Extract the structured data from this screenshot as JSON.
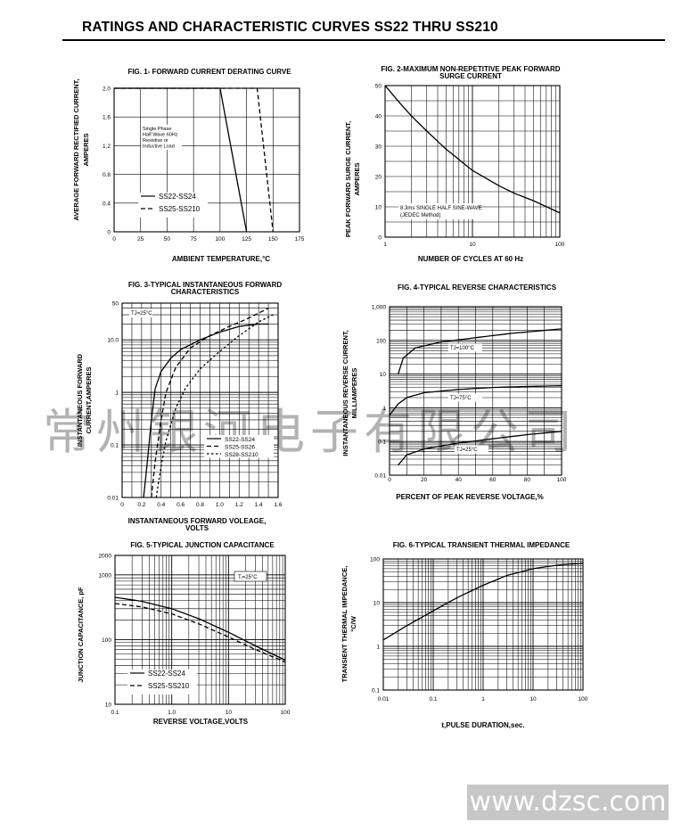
{
  "page": {
    "title": "RATINGS AND CHARACTERISTIC CURVES SS22 THRU SS210",
    "watermark": "常州银河电子有限公司",
    "website": "www.dzsc.com"
  },
  "chart_data": [
    {
      "id": "fig1",
      "type": "line",
      "title": "FIG. 1- FORWARD CURRENT DERATING CURVE",
      "xlabel": "AMBIENT TEMPERATURE,°C",
      "ylabel": "AVERAGE FORWARD RECTIFIED CURRENT, AMPERES",
      "xscale": "linear",
      "yscale": "linear",
      "xlim": [
        0,
        175
      ],
      "ylim": [
        0,
        2.0
      ],
      "xticks": [
        0,
        25,
        50,
        75,
        100,
        125,
        150,
        175
      ],
      "yticks": [
        0,
        0.4,
        0.8,
        1.2,
        1.6,
        2.0
      ],
      "xtick_labels": [
        "0",
        "25",
        "50",
        "75",
        "100",
        "125",
        "150",
        "175"
      ],
      "ytick_labels": [
        "0",
        "0.4",
        "0.8",
        "1.2",
        "1.6",
        "2.0"
      ],
      "annotation": [
        "Single Phase",
        "Half Wave 60Hz",
        "Resistive or",
        "Inductive Load"
      ],
      "legend": [
        {
          "label": "SS22-SS24",
          "style": "solid"
        },
        {
          "label": "SS25-SS210",
          "style": "dashed"
        }
      ],
      "series": [
        {
          "name": "SS22-SS24",
          "style": "solid",
          "points": [
            [
              0,
              2.0
            ],
            [
              100,
              2.0
            ],
            [
              125,
              0
            ]
          ]
        },
        {
          "name": "SS25-SS210",
          "style": "dashed",
          "points": [
            [
              0,
              2.0
            ],
            [
              135,
              2.0
            ],
            [
              150,
              0
            ]
          ]
        }
      ]
    },
    {
      "id": "fig2",
      "type": "line",
      "title": "FIG. 2-MAXIMUM NON-REPETITIVE PEAK FORWARD SURGE CURRENT",
      "xlabel": "NUMBER OF CYCLES AT 60 Hz",
      "ylabel": "PEAK FORWARD SURGE CURRENT, AMPERES",
      "xscale": "log",
      "yscale": "linear",
      "xlim": [
        1,
        100
      ],
      "ylim": [
        0,
        50
      ],
      "xticks": [
        1,
        10,
        100
      ],
      "yticks": [
        0,
        10,
        20,
        30,
        40,
        50
      ],
      "xtick_labels": [
        "1",
        "10",
        "100"
      ],
      "ytick_labels": [
        "0",
        "10",
        "20",
        "30",
        "40",
        "50"
      ],
      "annotation": [
        "8.3ms SINGLE HALF SINE-WAVE",
        "(JEDEC Method)"
      ],
      "series": [
        {
          "style": "solid",
          "points": [
            [
              1,
              50
            ],
            [
              1.5,
              44
            ],
            [
              2,
              40
            ],
            [
              3,
              35
            ],
            [
              5,
              29
            ],
            [
              10,
              22
            ],
            [
              20,
              17
            ],
            [
              30,
              14.5
            ],
            [
              50,
              12
            ],
            [
              100,
              8
            ]
          ]
        }
      ]
    },
    {
      "id": "fig3",
      "type": "line",
      "title": "FIG. 3-TYPICAL INSTANTANEOUS FORWARD CHARACTERISTICS",
      "xlabel": "INSTANTANEOUS FORWARD VOLEAGE, VOLTS",
      "ylabel": "INSTANTANEOUS FORWARD CURRENT,AMPERES",
      "xscale": "linear",
      "yscale": "log",
      "xlim": [
        0,
        1.6
      ],
      "ylim": [
        0.01,
        50
      ],
      "xticks": [
        0,
        0.2,
        0.4,
        0.6,
        0.8,
        1.0,
        1.2,
        1.4,
        1.6
      ],
      "yticks": [
        0.01,
        0.1,
        1,
        10,
        50
      ],
      "xtick_labels": [
        "0",
        "0.2",
        "0.4",
        "0.6",
        "0.8",
        "1.0",
        "1.2",
        "1.4",
        "1.6"
      ],
      "ytick_labels": [
        "0.01",
        "0.1",
        "1",
        "10.0",
        "50"
      ],
      "annotation": [
        "TJ=25°C"
      ],
      "legend": [
        {
          "label": "SS22-SS24",
          "style": "solid"
        },
        {
          "label": "SS25-SS26",
          "style": "dashed"
        },
        {
          "label": "SS28-SS210",
          "style": "dotted"
        }
      ],
      "series": [
        {
          "name": "SS22-SS24",
          "style": "solid",
          "points": [
            [
              0.22,
              0.01
            ],
            [
              0.26,
              0.05
            ],
            [
              0.3,
              0.3
            ],
            [
              0.34,
              1.2
            ],
            [
              0.4,
              2.5
            ],
            [
              0.5,
              4.5
            ],
            [
              0.6,
              6.5
            ],
            [
              0.8,
              10
            ],
            [
              1.0,
              14
            ],
            [
              1.2,
              18
            ],
            [
              1.4,
              20
            ],
            [
              1.5,
              20
            ]
          ]
        },
        {
          "name": "SS25-SS26",
          "style": "dashed",
          "points": [
            [
              0.3,
              0.01
            ],
            [
              0.34,
              0.05
            ],
            [
              0.4,
              0.3
            ],
            [
              0.45,
              1.0
            ],
            [
              0.55,
              3.0
            ],
            [
              0.7,
              7.0
            ],
            [
              0.9,
              12
            ],
            [
              1.1,
              18
            ],
            [
              1.3,
              26
            ],
            [
              1.5,
              40
            ]
          ]
        },
        {
          "name": "SS28-SS210",
          "style": "dotted",
          "points": [
            [
              0.35,
              0.01
            ],
            [
              0.4,
              0.04
            ],
            [
              0.45,
              0.12
            ],
            [
              0.55,
              0.5
            ],
            [
              0.65,
              1.2
            ],
            [
              0.8,
              2.8
            ],
            [
              1.0,
              6
            ],
            [
              1.2,
              12
            ],
            [
              1.4,
              22
            ],
            [
              1.55,
              30
            ]
          ]
        }
      ]
    },
    {
      "id": "fig4",
      "type": "line",
      "title": "FIG. 4-TYPICAL REVERSE CHARACTERISTICS",
      "xlabel": "PERCENT OF PEAK REVERSE VOLTAGE,%",
      "ylabel": "INSTANTANEOUS REVERSE CURRENT, MILLIAMPERES",
      "xscale": "linear",
      "yscale": "log",
      "xlim": [
        0,
        100
      ],
      "ylim": [
        0.01,
        1000
      ],
      "xticks": [
        0,
        20,
        40,
        60,
        80,
        100
      ],
      "yticks": [
        0.01,
        0.1,
        1,
        10,
        100,
        1000
      ],
      "xtick_labels": [
        "0",
        "20",
        "40",
        "60",
        "80",
        "100"
      ],
      "ytick_labels": [
        "0.01",
        "0.1",
        "1",
        "10",
        "100",
        "1,000"
      ],
      "series": [
        {
          "name": "TJ=100°C",
          "style": "solid",
          "points": [
            [
              5,
              10
            ],
            [
              8,
              30
            ],
            [
              15,
              60
            ],
            [
              30,
              90
            ],
            [
              50,
              120
            ],
            [
              70,
              160
            ],
            [
              100,
              220
            ]
          ]
        },
        {
          "name": "TJ=75°C",
          "style": "solid",
          "points": [
            [
              0,
              0.6
            ],
            [
              5,
              1.3
            ],
            [
              10,
              2
            ],
            [
              20,
              2.8
            ],
            [
              40,
              3.5
            ],
            [
              60,
              4
            ],
            [
              80,
              4.3
            ],
            [
              100,
              4.5
            ]
          ]
        },
        {
          "name": "TJ=25°C",
          "style": "solid",
          "points": [
            [
              5,
              0.02
            ],
            [
              10,
              0.04
            ],
            [
              20,
              0.06
            ],
            [
              40,
              0.09
            ],
            [
              60,
              0.12
            ],
            [
              80,
              0.16
            ],
            [
              100,
              0.2
            ]
          ]
        }
      ]
    },
    {
      "id": "fig5",
      "type": "line",
      "title": "FIG. 5-TYPICAL JUNCTION CAPACITANCE",
      "xlabel": "REVERSE VOLTAGE,VOLTS",
      "ylabel": "JUNCTION CAPACITANCE, pF",
      "xscale": "log",
      "yscale": "log",
      "xlim": [
        0.1,
        100
      ],
      "ylim": [
        10,
        2000
      ],
      "xticks": [
        0.1,
        1,
        10,
        100
      ],
      "yticks": [
        10,
        100,
        1000,
        2000
      ],
      "xtick_labels": [
        "0.1",
        "1.0",
        "10",
        "100"
      ],
      "ytick_labels": [
        "10",
        "100",
        "1000",
        "2000"
      ],
      "annotation": [
        "Tⱼ=25°C"
      ],
      "legend": [
        {
          "label": "SS22-SS24",
          "style": "solid"
        },
        {
          "label": "SS25-SS210",
          "style": "dashed"
        }
      ],
      "series": [
        {
          "name": "SS22-SS24",
          "style": "solid",
          "points": [
            [
              0.1,
              450
            ],
            [
              0.3,
              390
            ],
            [
              1,
              300
            ],
            [
              3,
              210
            ],
            [
              10,
              130
            ],
            [
              30,
              80
            ],
            [
              100,
              48
            ]
          ]
        },
        {
          "name": "SS25-SS210",
          "style": "dashed",
          "points": [
            [
              0.1,
              360
            ],
            [
              0.3,
              320
            ],
            [
              1,
              250
            ],
            [
              3,
              175
            ],
            [
              10,
              110
            ],
            [
              30,
              70
            ],
            [
              100,
              45
            ]
          ]
        }
      ]
    },
    {
      "id": "fig6",
      "type": "line",
      "title": "FIG. 6-TYPICAL TRANSIENT THERMAL IMPEDANCE",
      "xlabel": "t,PULSE DURATION,sec.",
      "ylabel": "TRANSIENT THERMAL IMPEDANCE, °C/W",
      "xscale": "log",
      "yscale": "log",
      "xlim": [
        0.01,
        100
      ],
      "ylim": [
        0.1,
        100
      ],
      "xticks": [
        0.01,
        0.1,
        1,
        10,
        100
      ],
      "yticks": [
        0.1,
        1,
        10,
        100
      ],
      "xtick_labels": [
        "0.01",
        "0.1",
        "1",
        "10",
        "100"
      ],
      "ytick_labels": [
        "0.1",
        "1",
        "10",
        "100"
      ],
      "series": [
        {
          "style": "solid",
          "points": [
            [
              0.01,
              1.4
            ],
            [
              0.03,
              3
            ],
            [
              0.1,
              6.5
            ],
            [
              0.3,
              13
            ],
            [
              1,
              25
            ],
            [
              3,
              42
            ],
            [
              10,
              60
            ],
            [
              30,
              72
            ],
            [
              100,
              80
            ]
          ]
        }
      ]
    }
  ]
}
